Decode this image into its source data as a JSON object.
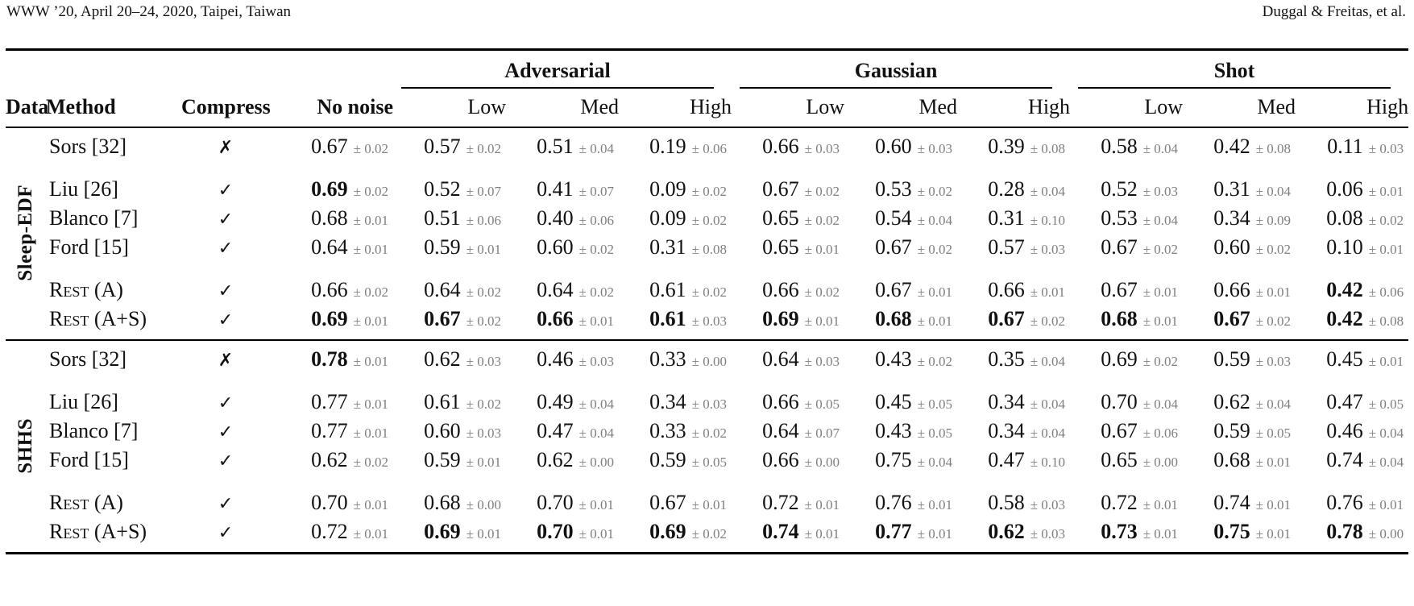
{
  "page_header": {
    "left": "WWW ’20, April 20–24, 2020, Taipei, Taiwan",
    "right": "Duggal & Freitas, et al."
  },
  "colors": {
    "error_text": "#7f7f7f",
    "text": "#111111",
    "rule": "#000000"
  },
  "table": {
    "columns": {
      "data": "Data",
      "method": "Method",
      "compress": "Compress",
      "no_noise": "No noise",
      "noise_groups": [
        {
          "label": "Adversarial",
          "subs": [
            "Low",
            "Med",
            "High"
          ]
        },
        {
          "label": "Gaussian",
          "subs": [
            "Low",
            "Med",
            "High"
          ]
        },
        {
          "label": "Shot",
          "subs": [
            "Low",
            "Med",
            "High"
          ]
        }
      ]
    },
    "symbols": {
      "yes": "✓",
      "no": "✗"
    },
    "groups": [
      {
        "label": "Sleep-EDF",
        "rows": [
          {
            "method": "Sors [32]",
            "smallcaps": false,
            "compress": false,
            "gap": false,
            "values": [
              {
                "v": "0.67",
                "e": "± 0.02",
                "b": false
              },
              {
                "v": "0.57",
                "e": "± 0.02",
                "b": false
              },
              {
                "v": "0.51",
                "e": "± 0.04",
                "b": false
              },
              {
                "v": "0.19",
                "e": "± 0.06",
                "b": false
              },
              {
                "v": "0.66",
                "e": "± 0.03",
                "b": false
              },
              {
                "v": "0.60",
                "e": "± 0.03",
                "b": false
              },
              {
                "v": "0.39",
                "e": "± 0.08",
                "b": false
              },
              {
                "v": "0.58",
                "e": "± 0.04",
                "b": false
              },
              {
                "v": "0.42",
                "e": "± 0.08",
                "b": false
              },
              {
                "v": "0.11",
                "e": "± 0.03",
                "b": false
              }
            ]
          },
          {
            "method": "Liu [26]",
            "smallcaps": false,
            "compress": true,
            "gap": true,
            "values": [
              {
                "v": "0.69",
                "e": "± 0.02",
                "b": true
              },
              {
                "v": "0.52",
                "e": "± 0.07",
                "b": false
              },
              {
                "v": "0.41",
                "e": "± 0.07",
                "b": false
              },
              {
                "v": "0.09",
                "e": "± 0.02",
                "b": false
              },
              {
                "v": "0.67",
                "e": "± 0.02",
                "b": false
              },
              {
                "v": "0.53",
                "e": "± 0.02",
                "b": false
              },
              {
                "v": "0.28",
                "e": "± 0.04",
                "b": false
              },
              {
                "v": "0.52",
                "e": "± 0.03",
                "b": false
              },
              {
                "v": "0.31",
                "e": "± 0.04",
                "b": false
              },
              {
                "v": "0.06",
                "e": "± 0.01",
                "b": false
              }
            ]
          },
          {
            "method": "Blanco [7]",
            "smallcaps": false,
            "compress": true,
            "gap": false,
            "values": [
              {
                "v": "0.68",
                "e": "± 0.01",
                "b": false
              },
              {
                "v": "0.51",
                "e": "± 0.06",
                "b": false
              },
              {
                "v": "0.40",
                "e": "± 0.06",
                "b": false
              },
              {
                "v": "0.09",
                "e": "± 0.02",
                "b": false
              },
              {
                "v": "0.65",
                "e": "± 0.02",
                "b": false
              },
              {
                "v": "0.54",
                "e": "± 0.04",
                "b": false
              },
              {
                "v": "0.31",
                "e": "± 0.10",
                "b": false
              },
              {
                "v": "0.53",
                "e": "± 0.04",
                "b": false
              },
              {
                "v": "0.34",
                "e": "± 0.09",
                "b": false
              },
              {
                "v": "0.08",
                "e": "± 0.02",
                "b": false
              }
            ]
          },
          {
            "method": "Ford [15]",
            "smallcaps": false,
            "compress": true,
            "gap": false,
            "values": [
              {
                "v": "0.64",
                "e": "± 0.01",
                "b": false
              },
              {
                "v": "0.59",
                "e": "± 0.01",
                "b": false
              },
              {
                "v": "0.60",
                "e": "± 0.02",
                "b": false
              },
              {
                "v": "0.31",
                "e": "± 0.08",
                "b": false
              },
              {
                "v": "0.65",
                "e": "± 0.01",
                "b": false
              },
              {
                "v": "0.67",
                "e": "± 0.02",
                "b": false
              },
              {
                "v": "0.57",
                "e": "± 0.03",
                "b": false
              },
              {
                "v": "0.67",
                "e": "± 0.02",
                "b": false
              },
              {
                "v": "0.60",
                "e": "± 0.02",
                "b": false
              },
              {
                "v": "0.10",
                "e": "± 0.01",
                "b": false
              }
            ]
          },
          {
            "method": "Rest (A)",
            "smallcaps": true,
            "compress": true,
            "gap": true,
            "values": [
              {
                "v": "0.66",
                "e": "± 0.02",
                "b": false
              },
              {
                "v": "0.64",
                "e": "± 0.02",
                "b": false
              },
              {
                "v": "0.64",
                "e": "± 0.02",
                "b": false
              },
              {
                "v": "0.61",
                "e": "± 0.02",
                "b": false
              },
              {
                "v": "0.66",
                "e": "± 0.02",
                "b": false
              },
              {
                "v": "0.67",
                "e": "± 0.01",
                "b": false
              },
              {
                "v": "0.66",
                "e": "± 0.01",
                "b": false
              },
              {
                "v": "0.67",
                "e": "± 0.01",
                "b": false
              },
              {
                "v": "0.66",
                "e": "± 0.01",
                "b": false
              },
              {
                "v": "0.42",
                "e": "± 0.06",
                "b": true
              }
            ]
          },
          {
            "method": "Rest (A+S)",
            "smallcaps": true,
            "compress": true,
            "gap": false,
            "values": [
              {
                "v": "0.69",
                "e": "± 0.01",
                "b": true
              },
              {
                "v": "0.67",
                "e": "± 0.02",
                "b": true
              },
              {
                "v": "0.66",
                "e": "± 0.01",
                "b": true
              },
              {
                "v": "0.61",
                "e": "± 0.03",
                "b": true
              },
              {
                "v": "0.69",
                "e": "± 0.01",
                "b": true
              },
              {
                "v": "0.68",
                "e": "± 0.01",
                "b": true
              },
              {
                "v": "0.67",
                "e": "± 0.02",
                "b": true
              },
              {
                "v": "0.68",
                "e": "± 0.01",
                "b": true
              },
              {
                "v": "0.67",
                "e": "± 0.02",
                "b": true
              },
              {
                "v": "0.42",
                "e": "± 0.08",
                "b": true
              }
            ]
          }
        ]
      },
      {
        "label": "SHHS",
        "rows": [
          {
            "method": "Sors [32]",
            "smallcaps": false,
            "compress": false,
            "gap": false,
            "values": [
              {
                "v": "0.78",
                "e": "± 0.01",
                "b": true
              },
              {
                "v": "0.62",
                "e": "± 0.03",
                "b": false
              },
              {
                "v": "0.46",
                "e": "± 0.03",
                "b": false
              },
              {
                "v": "0.33",
                "e": "± 0.00",
                "b": false
              },
              {
                "v": "0.64",
                "e": "± 0.03",
                "b": false
              },
              {
                "v": "0.43",
                "e": "± 0.02",
                "b": false
              },
              {
                "v": "0.35",
                "e": "± 0.04",
                "b": false
              },
              {
                "v": "0.69",
                "e": "± 0.02",
                "b": false
              },
              {
                "v": "0.59",
                "e": "± 0.03",
                "b": false
              },
              {
                "v": "0.45",
                "e": "± 0.01",
                "b": false
              }
            ]
          },
          {
            "method": "Liu [26]",
            "smallcaps": false,
            "compress": true,
            "gap": true,
            "values": [
              {
                "v": "0.77",
                "e": "± 0.01",
                "b": false
              },
              {
                "v": "0.61",
                "e": "± 0.02",
                "b": false
              },
              {
                "v": "0.49",
                "e": "± 0.04",
                "b": false
              },
              {
                "v": "0.34",
                "e": "± 0.03",
                "b": false
              },
              {
                "v": "0.66",
                "e": "± 0.05",
                "b": false
              },
              {
                "v": "0.45",
                "e": "± 0.05",
                "b": false
              },
              {
                "v": "0.34",
                "e": "± 0.04",
                "b": false
              },
              {
                "v": "0.70",
                "e": "± 0.04",
                "b": false
              },
              {
                "v": "0.62",
                "e": "± 0.04",
                "b": false
              },
              {
                "v": "0.47",
                "e": "± 0.05",
                "b": false
              }
            ]
          },
          {
            "method": "Blanco [7]",
            "smallcaps": false,
            "compress": true,
            "gap": false,
            "values": [
              {
                "v": "0.77",
                "e": "± 0.01",
                "b": false
              },
              {
                "v": "0.60",
                "e": "± 0.03",
                "b": false
              },
              {
                "v": "0.47",
                "e": "± 0.04",
                "b": false
              },
              {
                "v": "0.33",
                "e": "± 0.02",
                "b": false
              },
              {
                "v": "0.64",
                "e": "± 0.07",
                "b": false
              },
              {
                "v": "0.43",
                "e": "± 0.05",
                "b": false
              },
              {
                "v": "0.34",
                "e": "± 0.04",
                "b": false
              },
              {
                "v": "0.67",
                "e": "± 0.06",
                "b": false
              },
              {
                "v": "0.59",
                "e": "± 0.05",
                "b": false
              },
              {
                "v": "0.46",
                "e": "± 0.04",
                "b": false
              }
            ]
          },
          {
            "method": "Ford [15]",
            "smallcaps": false,
            "compress": true,
            "gap": false,
            "values": [
              {
                "v": "0.62",
                "e": "± 0.02",
                "b": false
              },
              {
                "v": "0.59",
                "e": "± 0.01",
                "b": false
              },
              {
                "v": "0.62",
                "e": "± 0.00",
                "b": false
              },
              {
                "v": "0.59",
                "e": "± 0.05",
                "b": false
              },
              {
                "v": "0.66",
                "e": "± 0.00",
                "b": false
              },
              {
                "v": "0.75",
                "e": "± 0.04",
                "b": false
              },
              {
                "v": "0.47",
                "e": "± 0.10",
                "b": false
              },
              {
                "v": "0.65",
                "e": "± 0.00",
                "b": false
              },
              {
                "v": "0.68",
                "e": "± 0.01",
                "b": false
              },
              {
                "v": "0.74",
                "e": "± 0.04",
                "b": false
              }
            ]
          },
          {
            "method": "Rest (A)",
            "smallcaps": true,
            "compress": true,
            "gap": true,
            "values": [
              {
                "v": "0.70",
                "e": "± 0.01",
                "b": false
              },
              {
                "v": "0.68",
                "e": "± 0.00",
                "b": false
              },
              {
                "v": "0.70",
                "e": "± 0.01",
                "b": false
              },
              {
                "v": "0.67",
                "e": "± 0.01",
                "b": false
              },
              {
                "v": "0.72",
                "e": "± 0.01",
                "b": false
              },
              {
                "v": "0.76",
                "e": "± 0.01",
                "b": false
              },
              {
                "v": "0.58",
                "e": "± 0.03",
                "b": false
              },
              {
                "v": "0.72",
                "e": "± 0.01",
                "b": false
              },
              {
                "v": "0.74",
                "e": "± 0.01",
                "b": false
              },
              {
                "v": "0.76",
                "e": "± 0.01",
                "b": false
              }
            ]
          },
          {
            "method": "Rest (A+S)",
            "smallcaps": true,
            "compress": true,
            "gap": false,
            "values": [
              {
                "v": "0.72",
                "e": "± 0.01",
                "b": false
              },
              {
                "v": "0.69",
                "e": "± 0.01",
                "b": true
              },
              {
                "v": "0.70",
                "e": "± 0.01",
                "b": true
              },
              {
                "v": "0.69",
                "e": "± 0.02",
                "b": true
              },
              {
                "v": "0.74",
                "e": "± 0.01",
                "b": true
              },
              {
                "v": "0.77",
                "e": "± 0.01",
                "b": true
              },
              {
                "v": "0.62",
                "e": "± 0.03",
                "b": true
              },
              {
                "v": "0.73",
                "e": "± 0.01",
                "b": true
              },
              {
                "v": "0.75",
                "e": "± 0.01",
                "b": true
              },
              {
                "v": "0.78",
                "e": "± 0.00",
                "b": true
              }
            ]
          }
        ]
      }
    ]
  }
}
